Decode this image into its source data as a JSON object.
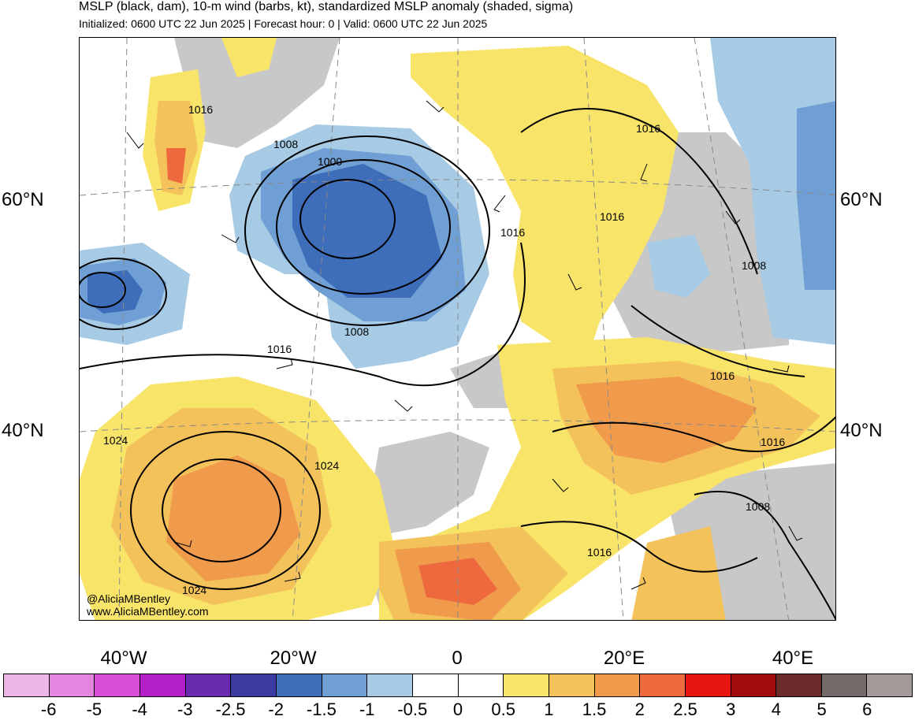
{
  "header": {
    "title": "MSLP (black, dam), 10-m wind (barbs, kt), standardized MSLP anomaly (shaded, sigma)",
    "subtitle": "Initialized: 0600 UTC 22 Jun 2025 | Forecast hour: 0 | Valid: 0600 UTC 22 Jun 2025"
  },
  "map": {
    "lat_labels": {
      "left_60": "60°N",
      "left_40": "40°N",
      "right_60": "60°N",
      "right_40": "40°N"
    },
    "lon_labels": [
      "40°W",
      "20°W",
      "0",
      "20°E",
      "40°E"
    ],
    "isobar_labels": [
      "1016",
      "1008",
      "1000",
      "1016",
      "1016",
      "1016",
      "1008",
      "1008",
      "1016",
      "1016",
      "1024",
      "1024",
      "1024",
      "1016",
      "1016",
      "1008"
    ],
    "credits": {
      "handle": "@AliciaMBentley",
      "site": "www.AliciaMBentley.com"
    },
    "colors": {
      "ocean": "#ffffff",
      "pos_05": "#f9e46a",
      "pos_1": "#f3c25a",
      "pos_15": "#f09a4b",
      "pos_2": "#ee6a3e",
      "neg_05": "#a7cbe4",
      "neg_1": "#6f9fd4",
      "neg_15": "#3e6dba",
      "land_gray": "#c8c8c8"
    }
  },
  "colorbar": {
    "colors": [
      "#ecb6e6",
      "#e585e0",
      "#d84ed8",
      "#b41fc8",
      "#6a2bb1",
      "#3a3aa0",
      "#3e6dba",
      "#6f9fd4",
      "#a7cbe4",
      "#ffffff",
      "#ffffff",
      "#f9e46a",
      "#f3c25a",
      "#f09a4b",
      "#ee6a3e",
      "#e8140f",
      "#a00b0b",
      "#6a2a2a",
      "#756a6a",
      "#a59a9a"
    ],
    "ticks": [
      "-6",
      "-5",
      "-4",
      "-3",
      "-2.5",
      "-2",
      "-1.5",
      "-1",
      "-0.5",
      "0",
      "0.5",
      "1",
      "1.5",
      "2",
      "2.5",
      "3",
      "4",
      "5",
      "6"
    ]
  }
}
